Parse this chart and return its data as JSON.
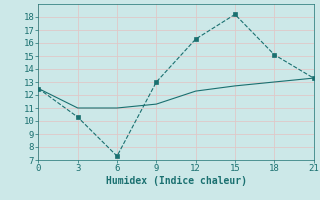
{
  "xlabel": "Humidex (Indice chaleur)",
  "line1_x": [
    0,
    3,
    6,
    9,
    12,
    15,
    18,
    21
  ],
  "line1_y": [
    12.5,
    10.3,
    7.3,
    13.0,
    16.3,
    18.2,
    15.1,
    13.3
  ],
  "line2_x": [
    0,
    3,
    6,
    9,
    12,
    15,
    18,
    21
  ],
  "line2_y": [
    12.5,
    11.0,
    11.0,
    11.3,
    12.3,
    12.7,
    13.0,
    13.3
  ],
  "color": "#1a7070",
  "bg_color": "#cce8e8",
  "grid_color": "#e0c8c8",
  "xlim": [
    0,
    21
  ],
  "ylim": [
    7,
    19
  ],
  "xticks": [
    0,
    3,
    6,
    9,
    12,
    15,
    18,
    21
  ],
  "yticks": [
    7,
    8,
    9,
    10,
    11,
    12,
    13,
    14,
    15,
    16,
    17,
    18
  ],
  "fontsize": 7,
  "marker_size": 3
}
